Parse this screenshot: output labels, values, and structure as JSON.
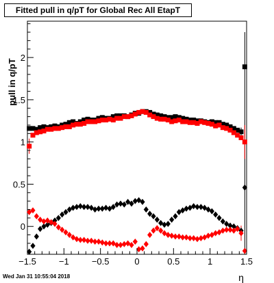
{
  "chart_data": {
    "type": "scatter",
    "title": "Fitted pull in q/pT for Global Rec All EtapT",
    "xlabel": "η",
    "ylabel": "pull in q/pT",
    "xlim": [
      -1.5,
      1.5
    ],
    "ylim": [
      -0.33,
      2.43
    ],
    "x_ticks": [
      "−1.5",
      "−1",
      "−0.5",
      "0",
      "0.5",
      "1",
      "1.5"
    ],
    "y_ticks": [
      "0",
      "0.5",
      "1",
      "1.5",
      "2"
    ],
    "grid": false,
    "series": [
      {
        "marker": "square",
        "color": "#000000",
        "x": [
          -1.475,
          -1.425,
          -1.375,
          -1.325,
          -1.275,
          -1.225,
          -1.175,
          -1.125,
          -1.075,
          -1.025,
          -0.975,
          -0.925,
          -0.875,
          -0.825,
          -0.775,
          -0.725,
          -0.675,
          -0.625,
          -0.575,
          -0.525,
          -0.475,
          -0.425,
          -0.375,
          -0.325,
          -0.275,
          -0.225,
          -0.175,
          -0.125,
          -0.075,
          -0.025,
          0.025,
          0.075,
          0.125,
          0.175,
          0.225,
          0.275,
          0.325,
          0.375,
          0.425,
          0.475,
          0.525,
          0.575,
          0.625,
          0.675,
          0.725,
          0.775,
          0.825,
          0.875,
          0.925,
          0.975,
          1.025,
          1.075,
          1.125,
          1.175,
          1.225,
          1.275,
          1.325,
          1.375,
          1.425,
          1.475
        ],
        "values": [
          1.16,
          1.16,
          1.15,
          1.17,
          1.18,
          1.17,
          1.18,
          1.19,
          1.18,
          1.2,
          1.21,
          1.23,
          1.24,
          1.22,
          1.24,
          1.26,
          1.27,
          1.26,
          1.26,
          1.28,
          1.29,
          1.28,
          1.28,
          1.3,
          1.31,
          1.31,
          1.31,
          1.3,
          1.32,
          1.34,
          1.34,
          1.36,
          1.36,
          1.35,
          1.33,
          1.32,
          1.31,
          1.3,
          1.29,
          1.29,
          1.3,
          1.29,
          1.28,
          1.27,
          1.26,
          1.26,
          1.25,
          1.25,
          1.24,
          1.23,
          1.24,
          1.23,
          1.23,
          1.21,
          1.2,
          1.18,
          1.16,
          1.14,
          1.12,
          1.89
        ]
      },
      {
        "marker": "square",
        "color": "#ff0000",
        "x": [
          -1.475,
          -1.425,
          -1.375,
          -1.325,
          -1.275,
          -1.225,
          -1.175,
          -1.125,
          -1.075,
          -1.025,
          -0.975,
          -0.925,
          -0.875,
          -0.825,
          -0.775,
          -0.725,
          -0.675,
          -0.625,
          -0.575,
          -0.525,
          -0.475,
          -0.425,
          -0.375,
          -0.325,
          -0.275,
          -0.225,
          -0.175,
          -0.125,
          -0.075,
          -0.025,
          0.025,
          0.075,
          0.125,
          0.175,
          0.225,
          0.275,
          0.325,
          0.375,
          0.425,
          0.475,
          0.525,
          0.575,
          0.625,
          0.675,
          0.725,
          0.775,
          0.825,
          0.875,
          0.925,
          0.975,
          1.025,
          1.075,
          1.125,
          1.175,
          1.225,
          1.275,
          1.325,
          1.375,
          1.425,
          1.475
        ],
        "values": [
          0.95,
          1.08,
          1.11,
          1.12,
          1.13,
          1.15,
          1.15,
          1.16,
          1.16,
          1.17,
          1.18,
          1.18,
          1.2,
          1.21,
          1.21,
          1.22,
          1.24,
          1.24,
          1.24,
          1.25,
          1.26,
          1.26,
          1.27,
          1.26,
          1.28,
          1.28,
          1.3,
          1.3,
          1.31,
          1.33,
          1.35,
          1.36,
          1.35,
          1.32,
          1.3,
          1.28,
          1.27,
          1.27,
          1.26,
          1.24,
          1.25,
          1.26,
          1.24,
          1.24,
          1.23,
          1.23,
          1.22,
          1.24,
          1.23,
          1.22,
          1.21,
          1.19,
          1.2,
          1.17,
          1.16,
          1.14,
          1.11,
          1.08,
          1.05,
          1.0
        ]
      },
      {
        "marker": "diamond",
        "color": "#000000",
        "x": [
          -1.475,
          -1.425,
          -1.375,
          -1.325,
          -1.275,
          -1.225,
          -1.175,
          -1.125,
          -1.075,
          -1.025,
          -0.975,
          -0.925,
          -0.875,
          -0.825,
          -0.775,
          -0.725,
          -0.675,
          -0.625,
          -0.575,
          -0.525,
          -0.475,
          -0.425,
          -0.375,
          -0.325,
          -0.275,
          -0.225,
          -0.175,
          -0.125,
          -0.075,
          -0.025,
          0.025,
          0.075,
          0.125,
          0.175,
          0.225,
          0.275,
          0.325,
          0.375,
          0.425,
          0.475,
          0.525,
          0.575,
          0.625,
          0.675,
          0.725,
          0.775,
          0.825,
          0.875,
          0.925,
          0.975,
          1.025,
          1.075,
          1.125,
          1.175,
          1.225,
          1.275,
          1.325,
          1.375,
          1.425,
          1.475
        ],
        "values": [
          -0.3,
          -0.23,
          -0.12,
          -0.03,
          0.0,
          0.02,
          0.04,
          0.07,
          0.1,
          0.14,
          0.17,
          0.2,
          0.22,
          0.23,
          0.24,
          0.23,
          0.23,
          0.22,
          0.2,
          0.21,
          0.21,
          0.22,
          0.21,
          0.23,
          0.26,
          0.27,
          0.26,
          0.29,
          0.27,
          0.3,
          0.31,
          0.29,
          0.2,
          0.15,
          0.12,
          0.08,
          0.04,
          0.02,
          0.03,
          0.08,
          0.12,
          0.17,
          0.19,
          0.21,
          0.22,
          0.24,
          0.23,
          0.23,
          0.22,
          0.2,
          0.18,
          0.14,
          0.1,
          0.06,
          0.03,
          0.01,
          0.0,
          -0.02,
          -0.05,
          0.46
        ]
      },
      {
        "marker": "diamond",
        "color": "#ff0000",
        "x": [
          -1.475,
          -1.425,
          -1.375,
          -1.325,
          -1.275,
          -1.225,
          -1.175,
          -1.125,
          -1.075,
          -1.025,
          -0.975,
          -0.925,
          -0.875,
          -0.825,
          -0.775,
          -0.725,
          -0.675,
          -0.625,
          -0.575,
          -0.525,
          -0.475,
          -0.425,
          -0.375,
          -0.325,
          -0.275,
          -0.225,
          -0.175,
          -0.125,
          -0.075,
          -0.025,
          0.025,
          0.075,
          0.125,
          0.175,
          0.225,
          0.275,
          0.325,
          0.375,
          0.425,
          0.475,
          0.525,
          0.575,
          0.625,
          0.675,
          0.725,
          0.775,
          0.825,
          0.875,
          0.925,
          0.975,
          1.025,
          1.075,
          1.125,
          1.175,
          1.225,
          1.275,
          1.325,
          1.375,
          1.425,
          1.475
        ],
        "values": [
          0.17,
          0.19,
          0.12,
          0.08,
          0.06,
          0.07,
          0.05,
          0.03,
          -0.01,
          -0.04,
          -0.07,
          -0.1,
          -0.13,
          -0.15,
          -0.16,
          -0.16,
          -0.17,
          -0.17,
          -0.18,
          -0.18,
          -0.19,
          -0.2,
          -0.2,
          -0.2,
          -0.22,
          -0.22,
          -0.21,
          -0.2,
          -0.22,
          -0.18,
          -0.27,
          -0.26,
          -0.21,
          -0.1,
          -0.05,
          -0.02,
          -0.05,
          -0.08,
          -0.1,
          -0.11,
          -0.12,
          -0.12,
          -0.13,
          -0.13,
          -0.14,
          -0.14,
          -0.15,
          -0.14,
          -0.13,
          -0.11,
          -0.1,
          -0.08,
          -0.07,
          -0.05,
          -0.04,
          -0.04,
          -0.05,
          -0.03,
          -0.08,
          -0.29
        ]
      }
    ],
    "error_bars": [
      {
        "series": 2,
        "x": 1.475,
        "low": -0.33,
        "high": 2.3
      },
      {
        "series": 1,
        "x": 1.475,
        "low": 0.8,
        "high": 1.2
      },
      {
        "series": 0,
        "x": 1.425,
        "low": 1.07,
        "high": 1.17
      },
      {
        "series": 1,
        "x": -1.475,
        "low": 0.86,
        "high": 1.04
      },
      {
        "series": 3,
        "x": 1.425,
        "low": -0.17,
        "high": 0.01
      }
    ]
  },
  "footer_text": "Wed Jan 31 10:55:04 2018"
}
